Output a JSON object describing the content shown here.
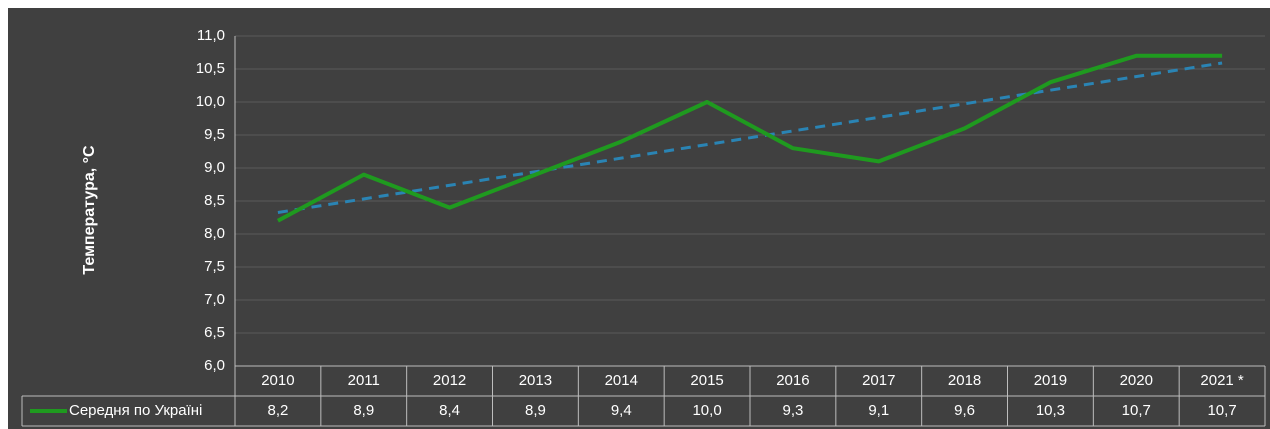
{
  "chart_data": {
    "type": "line",
    "y_label": "Температура, °C",
    "categories": [
      "2010",
      "2011",
      "2012",
      "2013",
      "2014",
      "2015",
      "2016",
      "2017",
      "2018",
      "2019",
      "2020",
      "2021 *"
    ],
    "series": [
      {
        "name": "Середня по Україні",
        "color": "#1f9a1f",
        "values": [
          8.2,
          8.9,
          8.4,
          8.9,
          9.4,
          10.0,
          9.3,
          9.1,
          9.6,
          10.3,
          10.7,
          10.7
        ],
        "value_labels": [
          "8,2",
          "8,9",
          "8,4",
          "8,9",
          "9,4",
          "10,0",
          "9,3",
          "9,1",
          "9,6",
          "10,3",
          "10,7",
          "10,7"
        ]
      }
    ],
    "trendline": {
      "type": "linear",
      "color": "#2a84b4",
      "dashed": true
    },
    "ylim": [
      6,
      11
    ],
    "yticks": [
      {
        "value": 6,
        "label": "6,0"
      },
      {
        "value": 6.5,
        "label": "6,5"
      },
      {
        "value": 7,
        "label": "7,0"
      },
      {
        "value": 7.5,
        "label": "7,5"
      },
      {
        "value": 8,
        "label": "8,0"
      },
      {
        "value": 8.5,
        "label": "8,5"
      },
      {
        "value": 9,
        "label": "9,0"
      },
      {
        "value": 9.5,
        "label": "9,5"
      },
      {
        "value": 10,
        "label": "10,0"
      },
      {
        "value": 10.5,
        "label": "10,5"
      },
      {
        "value": 11,
        "label": "11,0"
      }
    ],
    "grid": true
  }
}
